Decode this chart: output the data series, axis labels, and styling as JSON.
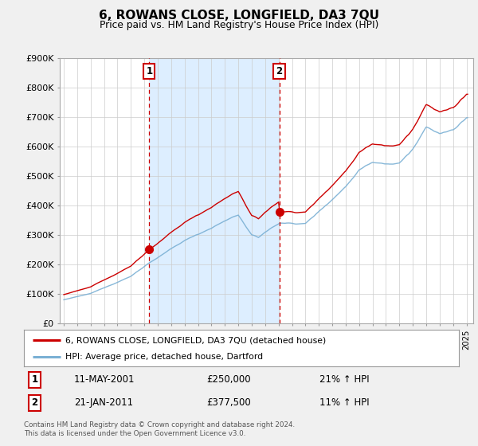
{
  "title": "6, ROWANS CLOSE, LONGFIELD, DA3 7QU",
  "subtitle": "Price paid vs. HM Land Registry's House Price Index (HPI)",
  "ylabel_ticks": [
    "£0",
    "£100K",
    "£200K",
    "£300K",
    "£400K",
    "£500K",
    "£600K",
    "£700K",
    "£800K",
    "£900K"
  ],
  "y_values": [
    0,
    100000,
    200000,
    300000,
    400000,
    500000,
    600000,
    700000,
    800000,
    900000
  ],
  "ylim": [
    0,
    900000
  ],
  "sale1_date_num": 2001.37,
  "sale1_price": 250000,
  "sale1_label": "1",
  "sale1_date_str": "11-MAY-2001",
  "sale1_price_str": "£250,000",
  "sale1_hpi_str": "21% ↑ HPI",
  "sale2_date_num": 2011.05,
  "sale2_price": 377500,
  "sale2_label": "2",
  "sale2_date_str": "21-JAN-2011",
  "sale2_price_str": "£377,500",
  "sale2_hpi_str": "11% ↑ HPI",
  "line_color_red": "#cc0000",
  "line_color_blue": "#7ab0d4",
  "shade_color": "#ddeeff",
  "vline_color": "#cc0000",
  "bg_color": "#f0f0f0",
  "plot_bg_color": "#ffffff",
  "legend_line1": "6, ROWANS CLOSE, LONGFIELD, DA3 7QU (detached house)",
  "legend_line2": "HPI: Average price, detached house, Dartford",
  "footer": "Contains HM Land Registry data © Crown copyright and database right 2024.\nThis data is licensed under the Open Government Licence v3.0.",
  "xlim_start": 1994.7,
  "xlim_end": 2025.5
}
